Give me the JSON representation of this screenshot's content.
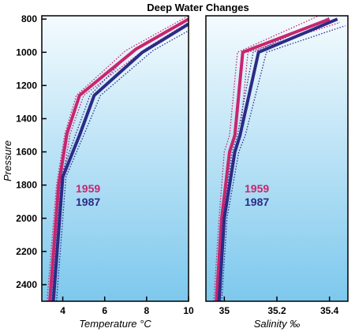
{
  "chart_data": {
    "title": "Deep Water Changes",
    "type": "line",
    "ylabel": "Pressure",
    "yticks": [
      800,
      1000,
      1200,
      1400,
      1600,
      1800,
      2000,
      2200,
      2400
    ],
    "ylim": [
      780,
      2500
    ],
    "y_inverted": true,
    "colors": {
      "1959": "#c8256e",
      "1987": "#2b2b86",
      "background_top": "#f4fbfe",
      "background_bottom": "#7dc8ed"
    },
    "panels": [
      {
        "xlabel": "Temperature °C",
        "xticks": [
          4,
          6,
          8,
          10
        ],
        "xlim": [
          3.0,
          10.0
        ],
        "series": [
          {
            "name": "1959",
            "x": [
              3.38,
              3.8,
              4.2,
              4.8,
              7.5,
              10.0
            ],
            "y": [
              2500,
              1800,
              1490,
              1260,
              980,
              800
            ]
          },
          {
            "name": "1987",
            "x": [
              3.55,
              4.0,
              4.8,
              5.5,
              7.8,
              10.0
            ],
            "y": [
              2500,
              1750,
              1500,
              1260,
              1000,
              830
            ]
          }
        ],
        "envelopes": {
          "1959": [
            {
              "x": [
                3.25,
                3.7,
                4.1,
                4.65,
                7.0,
                10.0
              ],
              "y": [
                2500,
                1800,
                1490,
                1260,
                990,
                780
              ]
            },
            {
              "x": [
                3.5,
                3.95,
                4.35,
                5.0,
                8.0,
                10.0
              ],
              "y": [
                2500,
                1800,
                1490,
                1260,
                975,
                820
              ]
            }
          ],
          "1987": [
            {
              "x": [
                3.45,
                3.9,
                4.6,
                5.3,
                7.2,
                10.0
              ],
              "y": [
                2500,
                1750,
                1500,
                1260,
                1005,
                800
              ]
            },
            {
              "x": [
                3.7,
                4.15,
                5.0,
                5.8,
                8.3,
                10.0
              ],
              "y": [
                2500,
                1750,
                1500,
                1260,
                990,
                870
              ]
            }
          ]
        },
        "legend": [
          "1959",
          "1987"
        ]
      },
      {
        "xlabel": "Salinity ‰",
        "xticks": [
          35,
          35.2,
          35.4
        ],
        "xlim": [
          34.93,
          35.47
        ],
        "series": [
          {
            "name": "1959",
            "x": [
              34.97,
              34.99,
              35.02,
              35.04,
              35.07,
              35.4
            ],
            "y": [
              2500,
              2000,
              1600,
              1500,
              1000,
              800
            ]
          },
          {
            "name": "1987",
            "x": [
              34.98,
              35.0,
              35.04,
              35.06,
              35.13,
              35.43
            ],
            "y": [
              2500,
              2000,
              1600,
              1500,
              1000,
              800
            ]
          }
        ],
        "envelopes": {
          "1959": [
            {
              "x": [
                34.96,
                34.98,
                35.0,
                35.02,
                35.05,
                35.36
              ],
              "y": [
                2500,
                2000,
                1600,
                1500,
                1000,
                780
              ]
            },
            {
              "x": [
                34.98,
                35.0,
                35.035,
                35.06,
                35.09,
                35.44
              ],
              "y": [
                2500,
                2000,
                1600,
                1500,
                1000,
                820
              ]
            }
          ],
          "1987": [
            {
              "x": [
                34.975,
                34.995,
                35.03,
                35.05,
                35.11,
                35.4
              ],
              "y": [
                2500,
                2000,
                1600,
                1500,
                1000,
                790
              ]
            },
            {
              "x": [
                34.99,
                35.01,
                35.055,
                35.08,
                35.16,
                35.46
              ],
              "y": [
                2500,
                2000,
                1600,
                1500,
                1000,
                840
              ]
            }
          ]
        },
        "legend": [
          "1959",
          "1987"
        ]
      }
    ]
  }
}
